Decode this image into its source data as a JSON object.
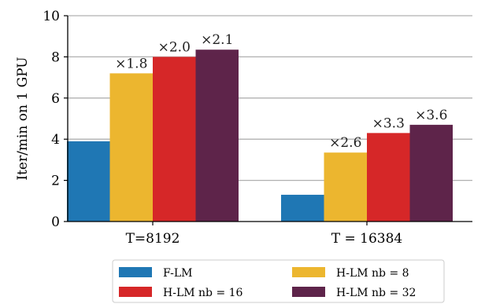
{
  "chart_data": {
    "type": "bar",
    "ylabel": "Iter/min on 1 GPU",
    "xlabel": "",
    "ylim": [
      0,
      10
    ],
    "yticks": [
      "0",
      "2",
      "4",
      "6",
      "8",
      "10"
    ],
    "grid": "horizontal",
    "legend_position": "bottom",
    "categories": [
      "T=8192",
      "T = 16384"
    ],
    "series": [
      {
        "name": "F-LM",
        "color": "#1f77b4",
        "values": [
          3.9,
          1.3
        ],
        "annotations": [
          "",
          ""
        ]
      },
      {
        "name": "H-LM nb = 8",
        "color": "#ecb62f",
        "values": [
          7.2,
          3.35
        ],
        "annotations": [
          "×1.8",
          "×2.6"
        ]
      },
      {
        "name": "H-LM nb = 16",
        "color": "#d62728",
        "values": [
          8.0,
          4.3
        ],
        "annotations": [
          "×2.0",
          "×3.3"
        ]
      },
      {
        "name": "H-LM nb = 32",
        "color": "#5e244a",
        "values": [
          8.35,
          4.7
        ],
        "annotations": [
          "×2.1",
          "×3.6"
        ]
      }
    ]
  }
}
